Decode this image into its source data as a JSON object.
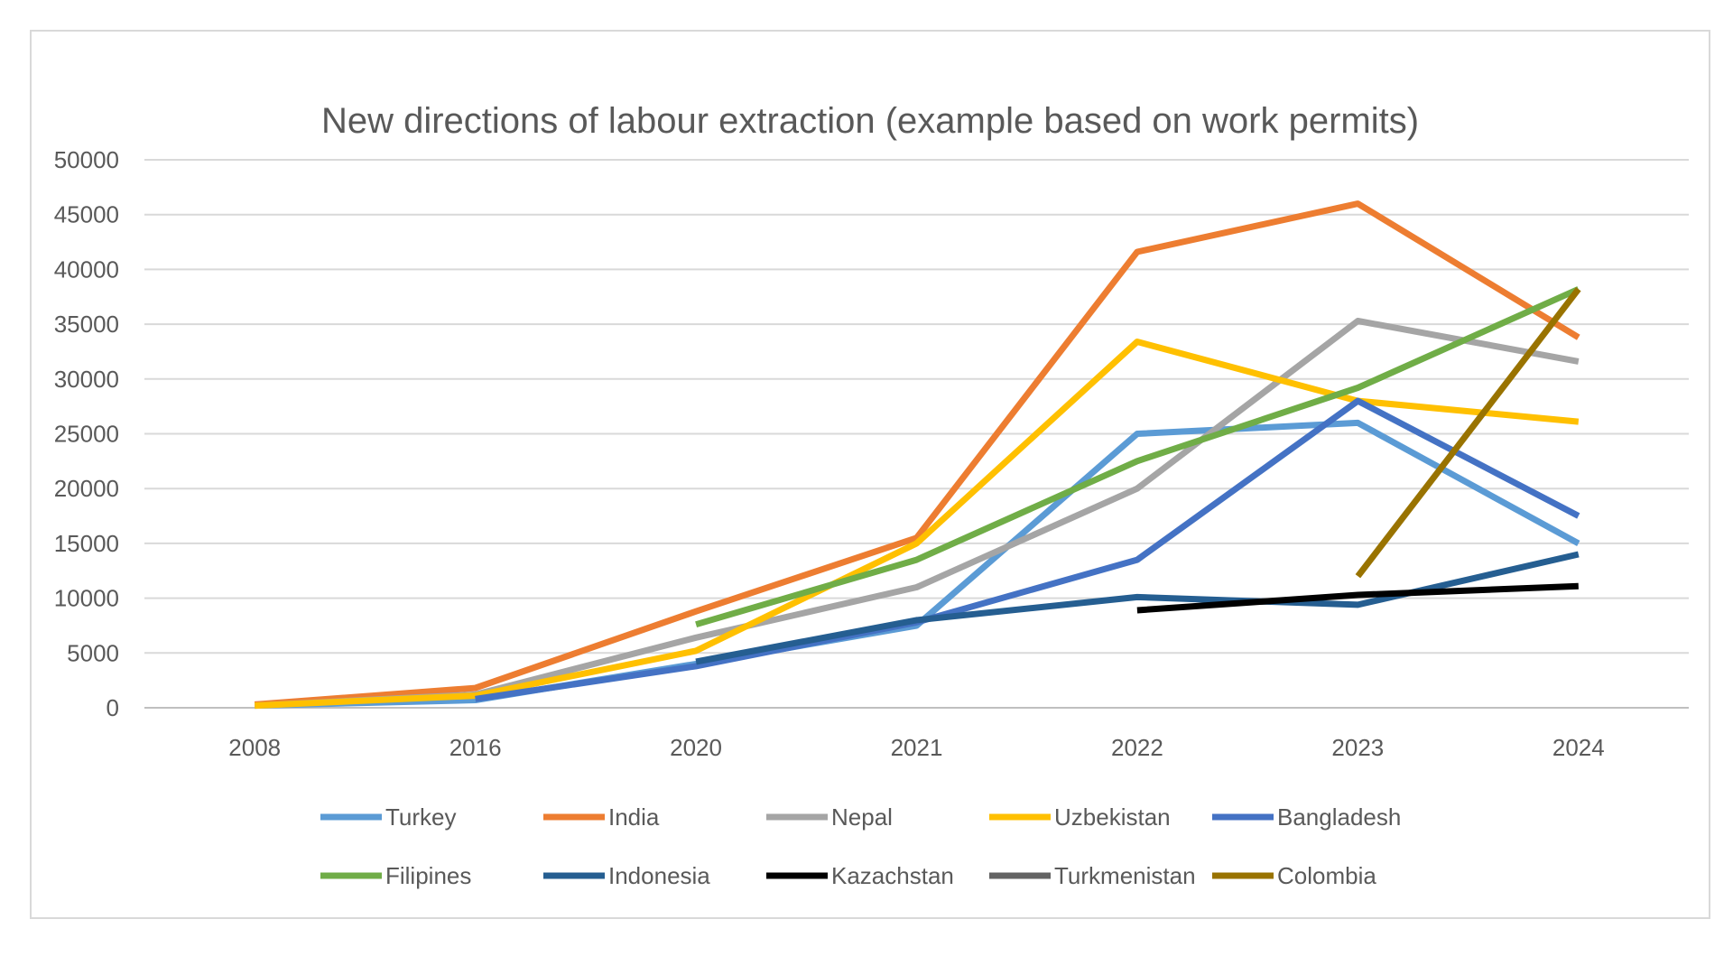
{
  "chart_data": {
    "type": "line",
    "title": "New directions of labour extraction (example based on work permits)",
    "xlabel": "",
    "ylabel": "",
    "categories": [
      "2008",
      "2016",
      "2020",
      "2021",
      "2022",
      "2023",
      "2024"
    ],
    "ylim": [
      0,
      50000
    ],
    "yticks": [
      "0",
      "5000",
      "10000",
      "15000",
      "20000",
      "25000",
      "30000",
      "35000",
      "40000",
      "45000",
      "50000"
    ],
    "grid": true,
    "legend_position": "bottom",
    "series": [
      {
        "name": "Turkey",
        "color": "#5b9bd5",
        "values": [
          200,
          700,
          4000,
          7500,
          25000,
          26000,
          15000
        ]
      },
      {
        "name": "India",
        "color": "#ed7d31",
        "values": [
          300,
          1800,
          8800,
          15500,
          41600,
          46000,
          33800
        ]
      },
      {
        "name": "Nepal",
        "color": "#a5a5a5",
        "values": [
          200,
          1200,
          6400,
          11000,
          20000,
          35300,
          31600
        ]
      },
      {
        "name": "Uzbekistan",
        "color": "#ffc000",
        "values": [
          200,
          1100,
          5200,
          15000,
          33400,
          28000,
          26100
        ]
      },
      {
        "name": "Bangladesh",
        "color": "#4472c4",
        "values": [
          null,
          800,
          3800,
          7800,
          13500,
          28000,
          17500
        ]
      },
      {
        "name": "Filipines",
        "color": "#70ad47",
        "values": [
          null,
          null,
          7600,
          13500,
          22500,
          29200,
          38200
        ]
      },
      {
        "name": "Indonesia",
        "color": "#255e91",
        "values": [
          null,
          null,
          4200,
          8000,
          10100,
          9400,
          14000
        ]
      },
      {
        "name": "Kazachstan",
        "color": "#000000",
        "values": [
          null,
          null,
          null,
          null,
          8900,
          10300,
          11100
        ]
      },
      {
        "name": "Turkmenistan",
        "color": "#636363",
        "values": [
          null,
          null,
          null,
          null,
          null,
          null,
          null
        ]
      },
      {
        "name": "Colombia",
        "color": "#997300",
        "values": [
          null,
          null,
          null,
          null,
          null,
          12000,
          38200
        ]
      }
    ]
  }
}
